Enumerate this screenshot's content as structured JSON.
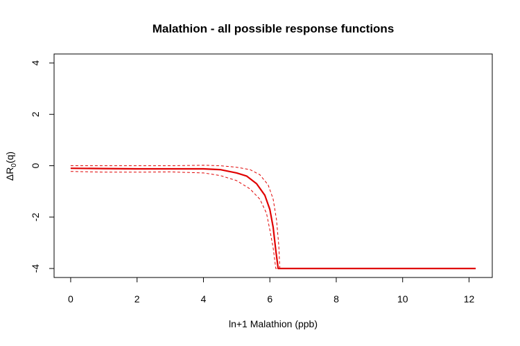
{
  "chart_data": {
    "type": "line",
    "title": "Malathion - all possible response functions",
    "xlabel": "ln+1 Malathion (ppb)",
    "ylabel": {
      "main": "ΔR",
      "sub": "0",
      "suffix": "(q)"
    },
    "xlim": [
      -0.5,
      12.7
    ],
    "ylim": [
      -4.35,
      4.35
    ],
    "x_ticks": [
      0,
      2,
      4,
      6,
      8,
      10,
      12
    ],
    "y_ticks": [
      -4,
      -2,
      0,
      2,
      4
    ],
    "grid": false,
    "colors": {
      "series": "#e00000",
      "frame": "#000000"
    },
    "series": [
      {
        "role": "estimate",
        "style": "solid",
        "points": [
          [
            0,
            -0.1
          ],
          [
            1,
            -0.11
          ],
          [
            2,
            -0.12
          ],
          [
            3,
            -0.12
          ],
          [
            4,
            -0.12
          ],
          [
            4.5,
            -0.15
          ],
          [
            5.0,
            -0.28
          ],
          [
            5.3,
            -0.4
          ],
          [
            5.6,
            -0.7
          ],
          [
            5.85,
            -1.15
          ],
          [
            6.0,
            -1.7
          ],
          [
            6.1,
            -2.4
          ],
          [
            6.18,
            -3.3
          ],
          [
            6.25,
            -4.0
          ],
          [
            7,
            -4.0
          ],
          [
            9,
            -4.0
          ],
          [
            11,
            -4.0
          ],
          [
            12.2,
            -4.0
          ]
        ]
      },
      {
        "role": "upper",
        "style": "dashed",
        "points": [
          [
            0,
            0.0
          ],
          [
            1,
            0.0
          ],
          [
            2,
            0.0
          ],
          [
            3,
            0.0
          ],
          [
            4,
            0.02
          ],
          [
            4.5,
            0.0
          ],
          [
            5.0,
            -0.06
          ],
          [
            5.4,
            -0.15
          ],
          [
            5.7,
            -0.35
          ],
          [
            5.95,
            -0.75
          ],
          [
            6.1,
            -1.3
          ],
          [
            6.2,
            -2.1
          ],
          [
            6.27,
            -3.1
          ],
          [
            6.3,
            -4.0
          ],
          [
            12.2,
            -4.0
          ]
        ]
      },
      {
        "role": "lower",
        "style": "dashed",
        "points": [
          [
            0,
            -0.22
          ],
          [
            1,
            -0.25
          ],
          [
            2,
            -0.25
          ],
          [
            3,
            -0.24
          ],
          [
            4,
            -0.28
          ],
          [
            4.5,
            -0.38
          ],
          [
            5.0,
            -0.58
          ],
          [
            5.4,
            -0.9
          ],
          [
            5.7,
            -1.3
          ],
          [
            5.9,
            -1.85
          ],
          [
            6.0,
            -2.5
          ],
          [
            6.1,
            -3.2
          ],
          [
            6.18,
            -4.0
          ],
          [
            12.2,
            -4.0
          ]
        ]
      }
    ]
  }
}
